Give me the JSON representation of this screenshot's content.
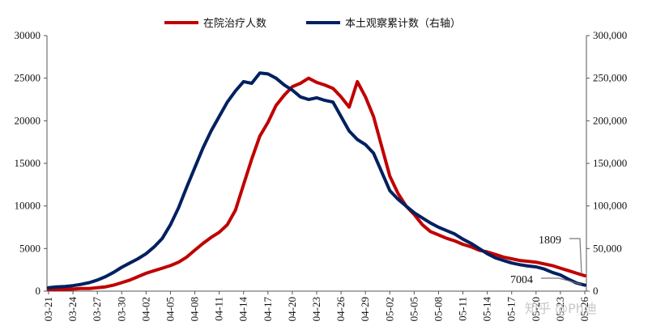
{
  "chart_data": {
    "type": "line",
    "title": "",
    "xlabel": "",
    "ylabel": "",
    "ylim": [
      0,
      30000
    ],
    "y2lim": [
      0,
      300000
    ],
    "yticks": [
      "0",
      "5000",
      "10000",
      "15000",
      "20000",
      "25000",
      "30000"
    ],
    "y2ticks": [
      "0",
      "50,000",
      "100,000",
      "150,000",
      "200,000",
      "250,000",
      "300,000"
    ],
    "xtick_labels": [
      "03-21",
      "03-24",
      "03-27",
      "03-30",
      "04-02",
      "04-05",
      "04-08",
      "04-11",
      "04-14",
      "04-17",
      "04-20",
      "04-23",
      "04-26",
      "04-29",
      "05-02",
      "05-05",
      "05-08",
      "05-11",
      "05-14",
      "05-17",
      "05-20",
      "05-23",
      "05-26"
    ],
    "dates": [
      "03-21",
      "03-22",
      "03-23",
      "03-24",
      "03-25",
      "03-26",
      "03-27",
      "03-28",
      "03-29",
      "03-30",
      "03-31",
      "04-01",
      "04-02",
      "04-03",
      "04-04",
      "04-05",
      "04-06",
      "04-07",
      "04-08",
      "04-09",
      "04-10",
      "04-11",
      "04-12",
      "04-13",
      "04-14",
      "04-15",
      "04-16",
      "04-17",
      "04-18",
      "04-19",
      "04-20",
      "04-21",
      "04-22",
      "04-23",
      "04-24",
      "04-25",
      "04-26",
      "04-27",
      "04-28",
      "04-29",
      "04-30",
      "05-01",
      "05-02",
      "05-03",
      "05-04",
      "05-05",
      "05-06",
      "05-07",
      "05-08",
      "05-09",
      "05-10",
      "05-11",
      "05-12",
      "05-13",
      "05-14",
      "05-15",
      "05-16",
      "05-17",
      "05-18",
      "05-19",
      "05-20",
      "05-21",
      "05-22",
      "05-23",
      "05-24",
      "05-25",
      "05-26"
    ],
    "series": [
      {
        "name": "在院治疗人数",
        "axis": "left",
        "color": "#c00000",
        "values": [
          200,
          200,
          200,
          250,
          300,
          300,
          400,
          500,
          700,
          1000,
          1300,
          1700,
          2100,
          2400,
          2700,
          3000,
          3400,
          4000,
          4800,
          5600,
          6300,
          6900,
          7800,
          9500,
          12500,
          15500,
          18200,
          19800,
          21800,
          23000,
          24000,
          24400,
          25000,
          24500,
          24200,
          23800,
          22800,
          21600,
          24600,
          22800,
          20500,
          17000,
          13500,
          11500,
          10000,
          9000,
          7800,
          7000,
          6600,
          6200,
          5900,
          5500,
          5200,
          4800,
          4600,
          4300,
          4000,
          3800,
          3600,
          3500,
          3400,
          3200,
          3000,
          2700,
          2400,
          2100,
          1809
        ]
      },
      {
        "name": "本土观察累计数（右轴）",
        "axis": "right",
        "color": "#002060",
        "values": [
          4000,
          5000,
          5500,
          6500,
          8000,
          10000,
          13000,
          17000,
          22000,
          28000,
          33000,
          38000,
          44000,
          52000,
          62000,
          78000,
          98000,
          122000,
          145000,
          168000,
          188000,
          205000,
          222000,
          235000,
          246000,
          244000,
          256000,
          255000,
          250000,
          242000,
          236000,
          228000,
          225000,
          227000,
          224000,
          222000,
          205000,
          188000,
          178000,
          172000,
          162000,
          140000,
          118000,
          108000,
          100000,
          92000,
          86000,
          80000,
          75000,
          71000,
          67000,
          61000,
          56000,
          50000,
          44000,
          39000,
          36000,
          33000,
          31000,
          29500,
          28500,
          26000,
          22000,
          19000,
          14000,
          9500,
          7004
        ]
      }
    ],
    "annotations": [
      "1809",
      "7004"
    ],
    "legend": "top-center",
    "grid": false
  },
  "watermark": "知乎 @Ph迪"
}
